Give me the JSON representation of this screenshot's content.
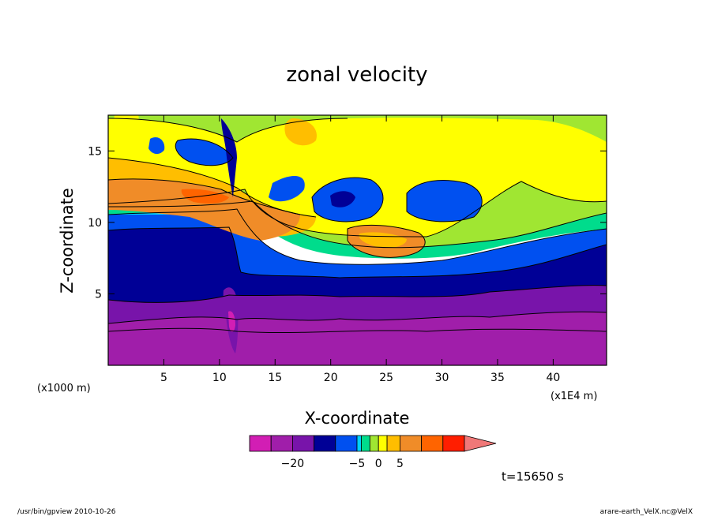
{
  "chart_data": {
    "type": "heatmap",
    "title": "zonal velocity",
    "xlabel": "X-coordinate",
    "ylabel": "Z-coordinate",
    "x_unit_left": "(x1000 m)",
    "x_unit_right": "(x1E4 m)",
    "xlim": [
      0,
      44.8
    ],
    "ylim": [
      0,
      17.5
    ],
    "x_ticks": [
      5,
      10,
      15,
      20,
      25,
      30,
      35,
      40
    ],
    "y_ticks": [
      5,
      10,
      15
    ],
    "colorbar": {
      "tick_labels": [
        {
          "value": -20,
          "label": "−20"
        },
        {
          "value": -5,
          "label": "−5"
        },
        {
          "value": 0,
          "label": "0"
        },
        {
          "value": 5,
          "label": "5"
        }
      ],
      "levels": [
        {
          "from": -30,
          "to": -25,
          "color": "#d21eb4"
        },
        {
          "from": -25,
          "to": -20,
          "color": "#a01eaa"
        },
        {
          "from": -20,
          "to": -15,
          "color": "#7814aa"
        },
        {
          "from": -15,
          "to": -10,
          "color": "#000096"
        },
        {
          "from": -10,
          "to": -5,
          "color": "#0050f0"
        },
        {
          "from": -5,
          "to": -4,
          "color": "#00d2ff"
        },
        {
          "from": -4,
          "to": -2,
          "color": "#00dc8c"
        },
        {
          "from": -2,
          "to": 0,
          "color": "#a0e632"
        },
        {
          "from": 0,
          "to": 2,
          "color": "#ffff00"
        },
        {
          "from": 2,
          "to": 5,
          "color": "#ffbe00"
        },
        {
          "from": 5,
          "to": 10,
          "color": "#f08c28"
        },
        {
          "from": 10,
          "to": 15,
          "color": "#ff6400"
        },
        {
          "from": 15,
          "to": 20,
          "color": "#ff1e00"
        }
      ],
      "extend_color": "#f07878"
    },
    "time_label": "t=15650 s"
  },
  "footer": {
    "left": "/usr/bin/gpview   2010-10-26",
    "right": "arare-earth_VelX.nc@VelX"
  }
}
